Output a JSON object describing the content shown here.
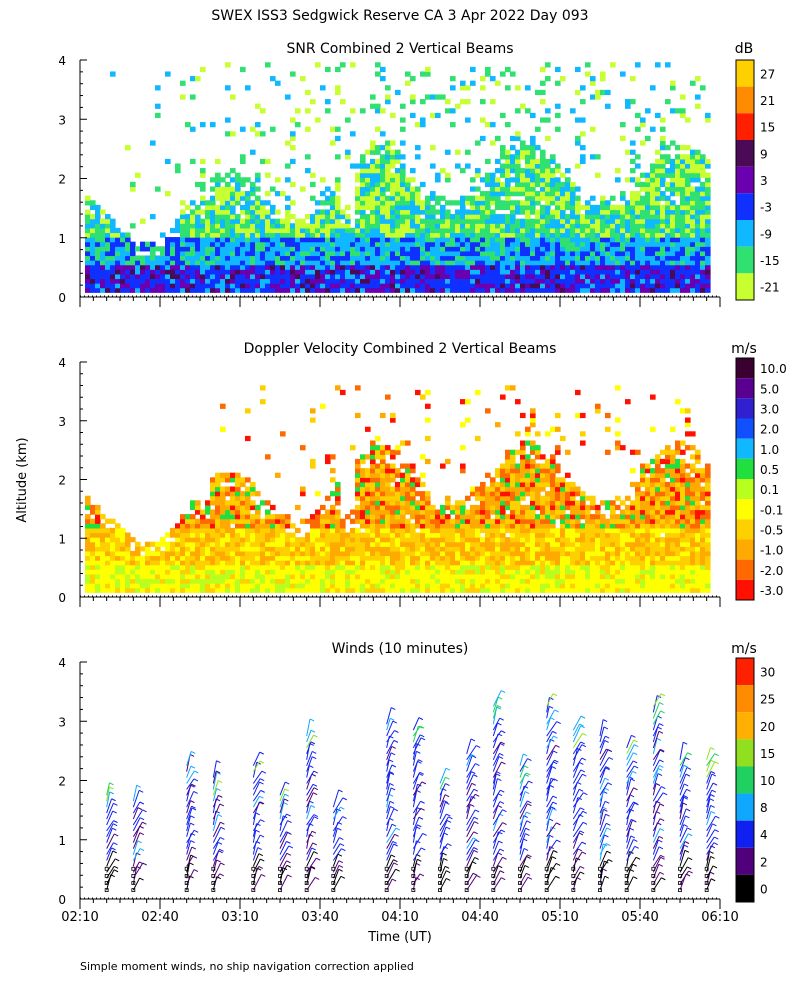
{
  "figure": {
    "title": "SWEX ISS3 Sedgwick Reserve CA   3 Apr 2022 Day 093",
    "footnote": "Simple moment winds, no ship navigation correction applied",
    "ylabel": "Altitude (km)",
    "xlabel": "Time (UT)",
    "x_ticks": [
      "02:10",
      "02:40",
      "03:10",
      "03:40",
      "04:10",
      "04:40",
      "05:10",
      "05:40",
      "06:10"
    ]
  },
  "chart_data": [
    {
      "type": "heatmap",
      "title": "SNR Combined 2 Vertical Beams",
      "xlabel": "Time (UT)",
      "ylabel": "Altitude (km)",
      "xlim": [
        "02:10",
        "06:10"
      ],
      "ylim": [
        0,
        4
      ],
      "y_ticks": [
        0,
        1,
        2,
        3,
        4
      ],
      "colorbar": {
        "unit": "dB",
        "labels": [
          "27",
          "21",
          "15",
          "9",
          "3",
          "-3",
          "-9",
          "-15",
          "-21"
        ],
        "colors": [
          "#ffd000",
          "#ff8c00",
          "#ff2000",
          "#4a0a55",
          "#6a00b0",
          "#1030ff",
          "#10b8ff",
          "#30e070",
          "#c8ff30"
        ]
      },
      "description_values": {
        "0.1-0.5 km": "-3 to 9",
        "0.5-1.0 km": "-9 to -3",
        "1.0-2.0 km": "-21 to -9",
        "gap_times": [
          "02:55",
          "03:20",
          "03:50"
        ]
      }
    },
    {
      "type": "heatmap",
      "title": "Doppler Velocity Combined 2 Vertical Beams",
      "xlabel": "Time (UT)",
      "ylabel": "Altitude (km)",
      "xlim": [
        "02:10",
        "06:10"
      ],
      "ylim": [
        0,
        4
      ],
      "y_ticks": [
        0,
        1,
        2,
        3,
        4
      ],
      "colorbar": {
        "unit": "m/s",
        "labels": [
          "10.0",
          "5.0",
          "3.0",
          "2.0",
          "1.0",
          "0.5",
          "0.1",
          "-0.1",
          "-0.5",
          "-1.0",
          "-2.0",
          "-3.0"
        ],
        "colors": [
          "#3a0030",
          "#5a0090",
          "#3020d0",
          "#1050ff",
          "#10b8ff",
          "#20e040",
          "#b8ff20",
          "#ffff00",
          "#ffd000",
          "#ffaa00",
          "#ff6a00",
          "#ff1000"
        ]
      },
      "description_values": {
        "0-0.5 km": "-0.1 to 0.1",
        "0.5-1.5 km": "-0.5 to -1.0",
        "1.5-3.0 km": "-1.0 to -2.0"
      }
    },
    {
      "type": "scatter",
      "title": "Winds (10 minutes)",
      "xlabel": "Time (UT)",
      "ylabel": "Altitude (km)",
      "xlim": [
        "02:10",
        "06:10"
      ],
      "ylim": [
        0,
        4
      ],
      "y_ticks": [
        0,
        1,
        2,
        3,
        4
      ],
      "colorbar": {
        "unit": "m/s",
        "labels": [
          "30",
          "25",
          "20",
          "15",
          "10",
          "8",
          "4",
          "2",
          "0"
        ],
        "colors": [
          "#ff2000",
          "#ff8c00",
          "#ffb000",
          "#90e020",
          "#20d060",
          "#10a8ff",
          "#1020f0",
          "#50007a",
          "#000000"
        ]
      },
      "profile_times": [
        "02:20",
        "02:30",
        "02:50",
        "03:00",
        "03:15",
        "03:25",
        "03:35",
        "03:45",
        "04:05",
        "04:15",
        "04:25",
        "04:35",
        "04:45",
        "04:55",
        "05:05",
        "05:15",
        "05:25",
        "05:35",
        "05:45",
        "05:55",
        "06:05"
      ],
      "profile_tops_km": [
        1.8,
        1.7,
        2.3,
        2.1,
        2.3,
        1.8,
        2.8,
        1.6,
        3.0,
        2.9,
        2.0,
        2.5,
        3.3,
        2.3,
        3.3,
        2.9,
        2.8,
        2.6,
        3.3,
        2.4,
        2.4
      ],
      "typical_speed_ms": "2-8"
    }
  ]
}
